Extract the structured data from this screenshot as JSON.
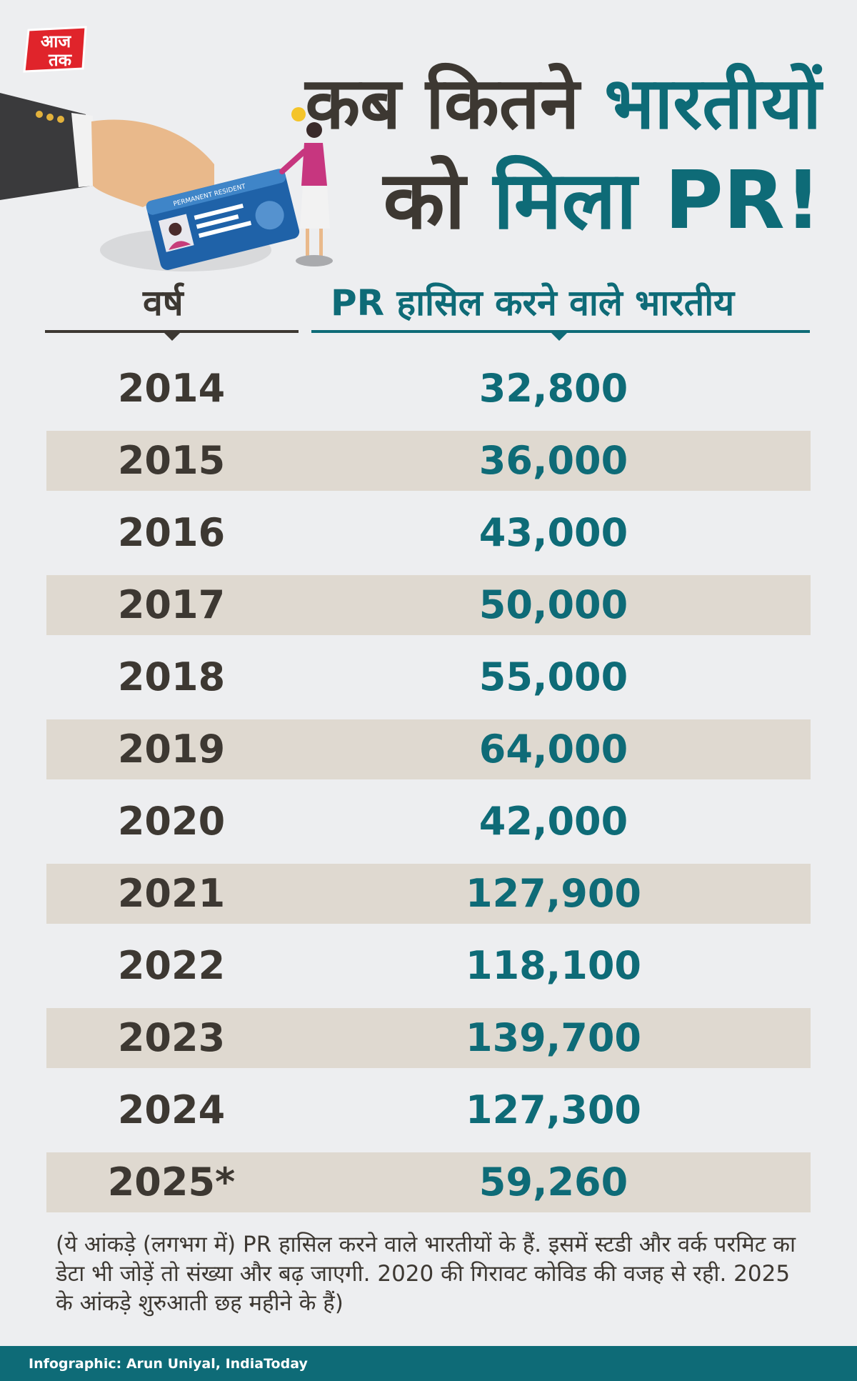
{
  "brand": {
    "logo_line1": "आज",
    "logo_line2": "तक"
  },
  "title": {
    "line1_plain": "कब कितने",
    "line1_accent": "भारतीयों",
    "line2_plain": "को",
    "line2_accent": "मिला PR!"
  },
  "illustration": {
    "card_text": "PERMANENT RESIDENT",
    "icon": "pr-card-illustration"
  },
  "table": {
    "headers": {
      "year": "वर्ष",
      "count": "PR हासिल करने वाले भारतीय"
    },
    "rows": [
      {
        "year": "2014",
        "count": "32,800"
      },
      {
        "year": "2015",
        "count": "36,000"
      },
      {
        "year": "2016",
        "count": "43,000"
      },
      {
        "year": "2017",
        "count": "50,000"
      },
      {
        "year": "2018",
        "count": "55,000"
      },
      {
        "year": "2019",
        "count": "64,000"
      },
      {
        "year": "2020",
        "count": "42,000"
      },
      {
        "year": "2021",
        "count": "127,900"
      },
      {
        "year": "2022",
        "count": "118,100"
      },
      {
        "year": "2023",
        "count": "139,700"
      },
      {
        "year": "2024",
        "count": "127,300"
      },
      {
        "year": "2025*",
        "count": "59,260"
      }
    ]
  },
  "note": "(ये आंकड़े (लगभग में) PR हासिल करने वाले भारतीयों के हैं. इसमें स्टडी और वर्क परमिट का डेटा भी जोड़ें तो संख्या और बढ़ जाएगी. 2020 की गिरावट कोविड की वजह से रही. 2025 के आंकड़े शुरुआती छह महीने के हैं)",
  "footer": {
    "credit": "Infographic: Arun Uniyal, IndiaToday"
  },
  "colors": {
    "accent": "#0e6b77",
    "dark_text": "#3d3832",
    "stripe": "#dfd9d0",
    "logo_red": "#e0242b"
  }
}
